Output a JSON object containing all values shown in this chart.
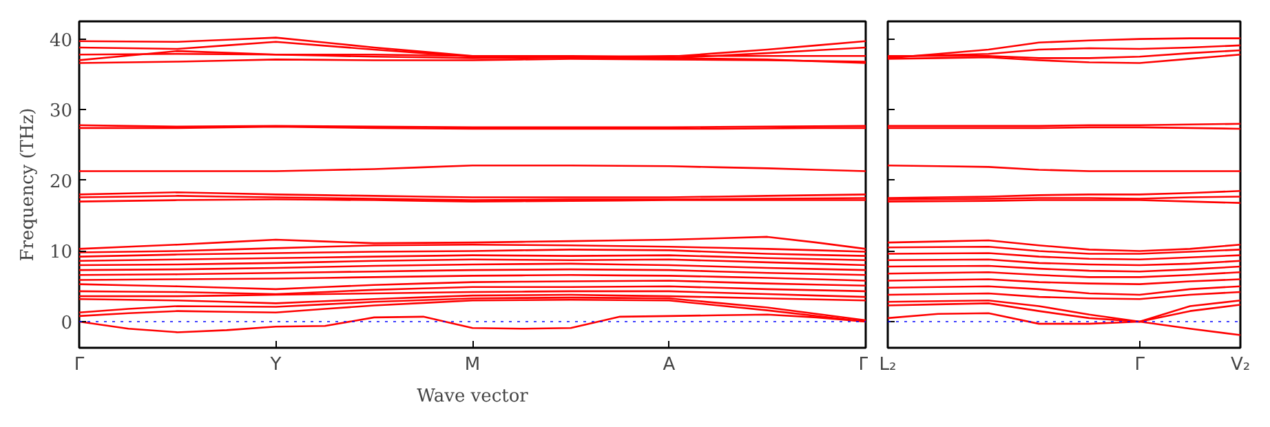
{
  "chart_data": [
    {
      "type": "line",
      "ylabel": "Frequency (THz)",
      "xlabel": "Wave vector",
      "categories": [
        "Γ",
        null,
        null,
        null,
        "Y",
        null,
        null,
        null,
        "M",
        null,
        null,
        null,
        "A",
        null,
        null,
        null,
        "Γ"
      ],
      "ylim": [
        -3.7,
        42.5
      ],
      "yticks": [
        0,
        10,
        20,
        30,
        40
      ],
      "grid": false,
      "ref_lines": [
        {
          "axis": "y",
          "value": 0,
          "color": "#0000ff",
          "line_style": "dotted"
        }
      ],
      "series": [
        {
          "color": "#ff0000",
          "values": [
            39.7,
            39.65,
            39.6,
            39.9,
            40.2,
            39.5,
            38.8,
            38.2,
            37.6,
            37.6,
            37.6,
            37.55,
            37.5,
            38.0,
            38.5,
            39.1,
            39.7
          ]
        },
        {
          "color": "#ff0000",
          "values": [
            38.8,
            38.7,
            38.6,
            39.1,
            39.6,
            39.05,
            38.5,
            38.0,
            37.5,
            37.5,
            37.5,
            37.4,
            37.3,
            37.65,
            38.0,
            38.4,
            38.8
          ]
        },
        {
          "color": "#ff0000",
          "values": [
            37.0,
            37.65,
            38.3,
            38.05,
            37.8,
            37.8,
            37.8,
            37.7,
            37.6,
            37.5,
            37.4,
            37.5,
            37.6,
            37.6,
            37.6,
            37.6,
            37.6
          ]
        },
        {
          "color": "#ff0000",
          "values": [
            36.6,
            36.7,
            36.8,
            36.95,
            37.1,
            37.05,
            37.0,
            37.0,
            37.0,
            37.1,
            37.2,
            37.15,
            37.1,
            37.05,
            37.0,
            36.9,
            36.8
          ]
        },
        {
          "color": "#ff0000",
          "values": [
            37.8,
            37.85,
            37.9,
            37.85,
            37.8,
            37.65,
            37.5,
            37.4,
            37.3,
            37.35,
            37.4,
            37.35,
            37.3,
            37.2,
            37.1,
            36.85,
            36.6
          ]
        },
        {
          "color": "#ff0000",
          "values": [
            27.8,
            27.7,
            27.6,
            27.65,
            27.7,
            27.65,
            27.6,
            27.55,
            27.5,
            27.5,
            27.5,
            27.5,
            27.5,
            27.55,
            27.6,
            27.65,
            27.7
          ]
        },
        {
          "color": "#ff0000",
          "values": [
            27.4,
            27.4,
            27.4,
            27.5,
            27.6,
            27.5,
            27.4,
            27.35,
            27.3,
            27.3,
            27.3,
            27.3,
            27.3,
            27.3,
            27.35,
            27.4,
            27.4
          ]
        },
        {
          "color": "#ff0000",
          "values": [
            21.3,
            21.3,
            21.3,
            21.3,
            21.3,
            21.45,
            21.6,
            21.85,
            22.1,
            22.1,
            22.1,
            22.05,
            22.0,
            21.85,
            21.7,
            21.5,
            21.3
          ]
        },
        {
          "color": "#ff0000",
          "values": [
            18.0,
            18.15,
            18.3,
            18.15,
            18.0,
            17.9,
            17.8,
            17.7,
            17.6,
            17.6,
            17.6,
            17.6,
            17.6,
            17.7,
            17.8,
            17.9,
            18.0
          ]
        },
        {
          "color": "#ff0000",
          "values": [
            17.6,
            17.7,
            17.8,
            17.7,
            17.6,
            17.5,
            17.4,
            17.3,
            17.2,
            17.25,
            17.3,
            17.3,
            17.3,
            17.35,
            17.4,
            17.45,
            17.5
          ]
        },
        {
          "color": "#ff0000",
          "values": [
            17.0,
            17.1,
            17.2,
            17.25,
            17.3,
            17.25,
            17.2,
            17.1,
            17.0,
            17.05,
            17.1,
            17.15,
            17.2,
            17.2,
            17.2,
            17.2,
            17.2
          ]
        },
        {
          "color": "#ff0000",
          "values": [
            10.3,
            10.6,
            10.9,
            11.25,
            11.6,
            11.35,
            11.1,
            11.15,
            11.2,
            11.3,
            11.4,
            11.5,
            11.6,
            11.8,
            12.0,
            11.2,
            10.3
          ]
        },
        {
          "color": "#ff0000",
          "values": [
            9.8,
            9.9,
            10.0,
            10.2,
            10.4,
            10.6,
            10.8,
            10.85,
            10.9,
            10.85,
            10.8,
            10.7,
            10.6,
            10.45,
            10.3,
            10.1,
            9.9
          ]
        },
        {
          "color": "#ff0000",
          "values": [
            9.2,
            9.35,
            9.5,
            9.6,
            9.7,
            9.8,
            9.9,
            9.95,
            10.0,
            10.1,
            10.2,
            10.15,
            10.1,
            9.85,
            9.6,
            9.45,
            9.3
          ]
        },
        {
          "color": "#ff0000",
          "values": [
            8.6,
            8.7,
            8.8,
            8.9,
            9.0,
            9.1,
            9.2,
            9.3,
            9.4,
            9.35,
            9.3,
            9.35,
            9.4,
            9.2,
            9.0,
            8.85,
            8.7
          ]
        },
        {
          "color": "#ff0000",
          "values": [
            8.0,
            8.05,
            8.1,
            8.2,
            8.3,
            8.45,
            8.6,
            8.7,
            8.8,
            8.75,
            8.7,
            8.75,
            8.8,
            8.6,
            8.4,
            8.2,
            8.0
          ]
        },
        {
          "color": "#ff0000",
          "values": [
            7.3,
            7.35,
            7.4,
            7.5,
            7.6,
            7.75,
            7.9,
            8.0,
            8.1,
            8.15,
            8.2,
            8.1,
            8.0,
            7.8,
            7.6,
            7.45,
            7.3
          ]
        },
        {
          "color": "#ff0000",
          "values": [
            6.6,
            6.65,
            6.7,
            6.8,
            6.9,
            7.0,
            7.1,
            7.2,
            7.3,
            7.35,
            7.4,
            7.35,
            7.3,
            7.1,
            6.9,
            6.75,
            6.6
          ]
        },
        {
          "color": "#ff0000",
          "values": [
            5.9,
            5.95,
            6.0,
            6.05,
            6.1,
            6.2,
            6.3,
            6.4,
            6.5,
            6.55,
            6.6,
            6.55,
            6.5,
            6.35,
            6.2,
            6.0,
            5.8
          ]
        },
        {
          "color": "#ff0000",
          "values": [
            5.3,
            5.15,
            5.0,
            4.8,
            4.6,
            4.9,
            5.2,
            5.4,
            5.6,
            5.65,
            5.7,
            5.75,
            5.8,
            5.6,
            5.4,
            5.25,
            5.1
          ]
        },
        {
          "color": "#ff0000",
          "values": [
            4.3,
            4.25,
            4.2,
            4.05,
            3.9,
            4.2,
            4.5,
            4.7,
            4.9,
            4.9,
            4.9,
            4.95,
            5.0,
            4.8,
            4.6,
            4.45,
            4.3
          ]
        },
        {
          "color": "#ff0000",
          "values": [
            3.6,
            3.6,
            3.6,
            3.7,
            3.8,
            3.9,
            4.0,
            4.1,
            4.2,
            4.25,
            4.3,
            4.3,
            4.3,
            4.1,
            3.9,
            3.7,
            3.5
          ]
        },
        {
          "color": "#ff0000",
          "values": [
            3.2,
            3.1,
            3.0,
            2.8,
            2.6,
            2.9,
            3.2,
            3.45,
            3.7,
            3.75,
            3.8,
            3.7,
            3.6,
            3.45,
            3.3,
            3.15,
            3.0
          ]
        },
        {
          "color": "#ff0000",
          "values": [
            1.3,
            1.8,
            2.2,
            2.15,
            2.1,
            2.45,
            2.8,
            3.05,
            3.3,
            3.35,
            3.4,
            3.35,
            3.3,
            2.65,
            2.0,
            1.1,
            0.2
          ]
        },
        {
          "color": "#ff0000",
          "values": [
            0.8,
            1.2,
            1.5,
            1.4,
            1.3,
            1.8,
            2.3,
            2.65,
            3.0,
            3.05,
            3.1,
            3.05,
            3.0,
            2.3,
            1.6,
            0.8,
            0.0
          ]
        },
        {
          "color": "#ff0000",
          "values": [
            0.0,
            -1.0,
            -1.5,
            -1.2,
            -0.7,
            -0.6,
            0.6,
            0.7,
            -0.9,
            -1.0,
            -0.9,
            0.7,
            0.8,
            0.9,
            1.0,
            0.6,
            0.0
          ]
        }
      ]
    },
    {
      "type": "line",
      "categories": [
        "L₂",
        null,
        null,
        null,
        null,
        "Γ",
        null,
        "V₂"
      ],
      "ylim": [
        -3.7,
        42.5
      ],
      "yticks": [
        {
          "value": 0,
          "label": null
        },
        {
          "value": 10,
          "label": null
        },
        {
          "value": 20,
          "label": null
        },
        {
          "value": 30,
          "label": null
        },
        {
          "value": 40,
          "label": null
        }
      ],
      "tick_labels": "x",
      "grid": false,
      "ref_lines": [
        {
          "axis": "y",
          "value": 0,
          "color": "#0000ff",
          "line_style": "dotted"
        }
      ],
      "series": [
        {
          "color": "#ff0000",
          "values": [
            37.3,
            37.9,
            38.5,
            39.5,
            39.8,
            40.0,
            40.1,
            40.1
          ]
        },
        {
          "color": "#ff0000",
          "values": [
            37.5,
            37.7,
            37.9,
            38.5,
            38.7,
            38.6,
            38.8,
            39.1
          ]
        },
        {
          "color": "#ff0000",
          "values": [
            37.2,
            37.3,
            37.4,
            37.0,
            36.7,
            36.6,
            37.2,
            37.8
          ]
        },
        {
          "color": "#ff0000",
          "values": [
            37.6,
            37.6,
            37.6,
            37.3,
            37.3,
            37.5,
            38.0,
            38.4
          ]
        },
        {
          "color": "#ff0000",
          "values": [
            27.7,
            27.7,
            27.7,
            27.7,
            27.8,
            27.8,
            27.9,
            28.0
          ]
        },
        {
          "color": "#ff0000",
          "values": [
            27.4,
            27.4,
            27.4,
            27.4,
            27.5,
            27.5,
            27.4,
            27.3
          ]
        },
        {
          "color": "#ff0000",
          "values": [
            22.1,
            22.0,
            21.9,
            21.5,
            21.3,
            21.3,
            21.3,
            21.3
          ]
        },
        {
          "color": "#ff0000",
          "values": [
            17.5,
            17.6,
            17.7,
            17.9,
            18.0,
            18.0,
            18.2,
            18.5
          ]
        },
        {
          "color": "#ff0000",
          "values": [
            17.3,
            17.35,
            17.4,
            17.5,
            17.5,
            17.4,
            17.6,
            17.7
          ]
        },
        {
          "color": "#ff0000",
          "values": [
            17.0,
            17.05,
            17.1,
            17.2,
            17.2,
            17.2,
            17.0,
            16.8
          ]
        },
        {
          "color": "#ff0000",
          "values": [
            11.2,
            11.35,
            11.5,
            10.8,
            10.2,
            10.0,
            10.3,
            10.9
          ]
        },
        {
          "color": "#ff0000",
          "values": [
            10.5,
            10.55,
            10.6,
            10.0,
            9.6,
            9.6,
            9.9,
            10.2
          ]
        },
        {
          "color": "#ff0000",
          "values": [
            9.6,
            9.65,
            9.7,
            9.2,
            8.9,
            8.8,
            9.1,
            9.4
          ]
        },
        {
          "color": "#ff0000",
          "values": [
            8.7,
            8.75,
            8.8,
            8.3,
            8.1,
            8.0,
            8.2,
            8.6
          ]
        },
        {
          "color": "#ff0000",
          "values": [
            7.8,
            7.85,
            7.9,
            7.5,
            7.2,
            7.1,
            7.4,
            7.8
          ]
        },
        {
          "color": "#ff0000",
          "values": [
            6.8,
            6.9,
            7.0,
            6.6,
            6.3,
            6.3,
            6.6,
            7.0
          ]
        },
        {
          "color": "#ff0000",
          "values": [
            5.8,
            5.9,
            6.0,
            5.6,
            5.4,
            5.3,
            5.7,
            6.0
          ]
        },
        {
          "color": "#ff0000",
          "values": [
            4.8,
            4.9,
            5.0,
            4.6,
            4.0,
            3.8,
            4.6,
            5.0
          ]
        },
        {
          "color": "#ff0000",
          "values": [
            3.8,
            3.9,
            4.0,
            3.5,
            3.3,
            3.2,
            3.8,
            4.2
          ]
        },
        {
          "color": "#ff0000",
          "values": [
            2.8,
            2.9,
            3.0,
            2.2,
            1.0,
            0.0,
            2.2,
            3.0
          ]
        },
        {
          "color": "#ff0000",
          "values": [
            2.3,
            2.45,
            2.6,
            1.5,
            0.5,
            0.0,
            1.5,
            2.4
          ]
        },
        {
          "color": "#ff0000",
          "values": [
            0.5,
            1.1,
            1.2,
            -0.3,
            -0.3,
            0.0,
            -1.0,
            -1.9
          ]
        }
      ]
    }
  ]
}
